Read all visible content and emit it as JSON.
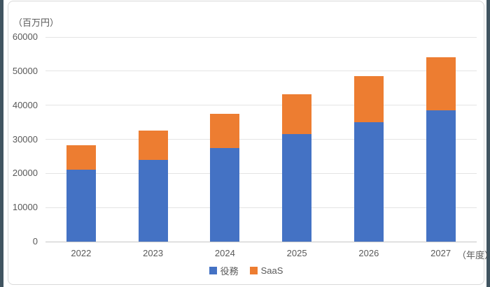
{
  "chart": {
    "unit_label": "（百万円）",
    "x_axis_suffix": "（年度）"
  },
  "chart_data": {
    "type": "bar",
    "stacked": true,
    "title": "",
    "categories": [
      "2022",
      "2023",
      "2024",
      "2025",
      "2026",
      "2027"
    ],
    "series": [
      {
        "name": "役務",
        "color": "#4472C4",
        "values": [
          21000,
          24000,
          27500,
          31500,
          35000,
          38500
        ]
      },
      {
        "name": "SaaS",
        "color": "#ED7D31",
        "values": [
          7200,
          8500,
          10000,
          11700,
          13500,
          15500
        ]
      }
    ],
    "totals": [
      28200,
      32500,
      37500,
      43200,
      48500,
      54000
    ],
    "ylabel": "（百万円）",
    "xlabel": "（年度）",
    "ylim": [
      0,
      60000
    ],
    "y_ticks": [
      0,
      10000,
      20000,
      30000,
      40000,
      50000,
      60000
    ],
    "grid": true,
    "legend_position": "bottom"
  },
  "colors": {
    "series_blue": "#4472C4",
    "series_orange": "#ED7D31",
    "text": "#595959",
    "gridline": "#E4E4E4",
    "axis_line": "#C6C6C6",
    "chart_border": "#D9D9D9",
    "frame_edge": "#405460",
    "background": "#FFFFFF"
  }
}
